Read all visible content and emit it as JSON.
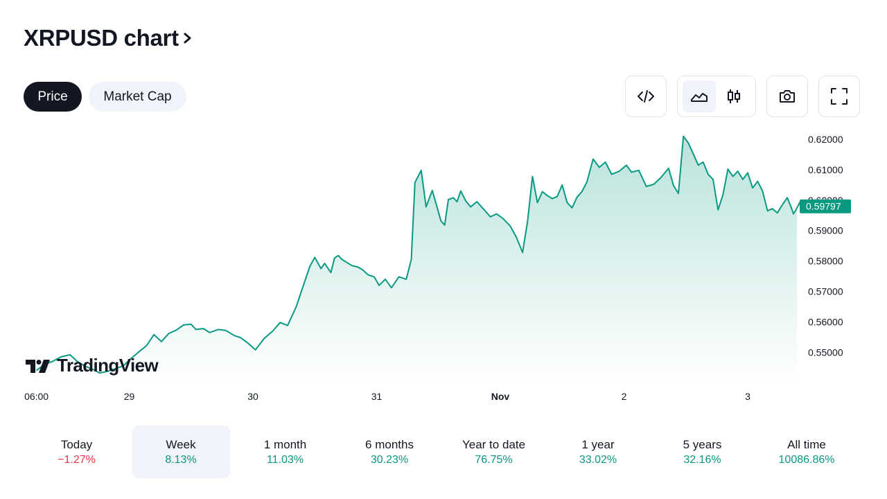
{
  "header": {
    "title": "XRPUSD chart"
  },
  "tabs": [
    {
      "label": "Price",
      "active": true
    },
    {
      "label": "Market Cap",
      "active": false
    }
  ],
  "toolbar": {
    "embed_icon": "code-embed-icon",
    "chart_type_icons": [
      "area-chart-icon",
      "candlestick-icon"
    ],
    "active_chart_type": "area",
    "snapshot_icon": "camera-icon",
    "fullscreen_icon": "fullscreen-icon"
  },
  "branding": {
    "wordmark": "TradingView"
  },
  "chart_data": {
    "type": "area",
    "title": "",
    "xlabel": "",
    "ylabel": "",
    "x_tick_labels": [
      "06:00",
      "29",
      "30",
      "31",
      "Nov",
      "2",
      "3"
    ],
    "y_tick_labels": [
      "0.62000",
      "0.61000",
      "0.60000",
      "0.59000",
      "0.58000",
      "0.57000",
      "0.56000",
      "0.55000"
    ],
    "y_ticks": [
      0.62,
      0.61,
      0.6,
      0.59,
      0.58,
      0.57,
      0.56,
      0.55
    ],
    "ylim": [
      0.5433,
      0.6222
    ],
    "current_price": 0.59797,
    "current_price_label": "0.59797",
    "line_color": "#089981",
    "x_ticks_days": [
      0.25,
      1,
      2,
      3,
      4,
      5,
      6
    ],
    "series": [
      {
        "x_days": [
          0.25,
          0.32,
          0.38,
          0.45,
          0.52,
          0.58,
          0.64,
          0.7,
          0.76,
          0.82,
          0.88,
          0.95,
          1.01,
          1.08,
          1.14,
          1.2,
          1.26,
          1.32,
          1.38,
          1.44,
          1.5,
          1.54,
          1.6,
          1.65,
          1.72,
          1.78,
          1.85,
          1.9,
          1.96,
          2.02,
          2.09,
          2.16,
          2.22,
          2.28,
          2.35,
          2.4,
          2.46,
          2.5,
          2.55,
          2.58,
          2.63,
          2.66,
          2.69,
          2.72,
          2.76,
          2.8,
          2.85,
          2.89,
          2.93,
          2.98,
          3.02,
          3.07,
          3.12,
          3.18,
          3.24,
          3.28,
          3.31,
          3.36,
          3.4,
          3.45,
          3.49,
          3.52,
          3.55,
          3.58,
          3.62,
          3.65,
          3.68,
          3.72,
          3.76,
          3.81,
          3.87,
          3.92,
          3.97,
          4.02,
          4.08,
          4.13,
          4.18,
          4.22,
          4.26,
          4.3,
          4.34,
          4.38,
          4.42,
          4.46,
          4.5,
          4.54,
          4.58,
          4.62,
          4.66,
          4.7,
          4.75,
          4.8,
          4.85,
          4.9,
          4.96,
          5.02,
          5.06,
          5.12,
          5.18,
          5.24,
          5.3,
          5.36,
          5.4,
          5.44,
          5.48,
          5.52,
          5.56,
          5.6,
          5.64,
          5.68,
          5.72,
          5.76,
          5.8,
          5.84,
          5.88,
          5.92,
          5.96,
          6.0,
          6.04,
          6.08,
          6.12,
          6.16,
          6.2,
          6.24,
          6.28,
          6.32,
          6.35,
          6.37,
          6.39,
          6.42,
          6.45,
          6.47
        ],
        "values": [
          0.544,
          0.5462,
          0.547,
          0.5485,
          0.5492,
          0.547,
          0.5455,
          0.5445,
          0.5432,
          0.5437,
          0.5445,
          0.5455,
          0.5478,
          0.5502,
          0.5522,
          0.5558,
          0.5535,
          0.5562,
          0.5573,
          0.559,
          0.5592,
          0.5575,
          0.5578,
          0.5565,
          0.5575,
          0.5572,
          0.5555,
          0.5548,
          0.553,
          0.5508,
          0.5545,
          0.557,
          0.5598,
          0.5588,
          0.565,
          0.571,
          0.5782,
          0.5812,
          0.5775,
          0.5792,
          0.5762,
          0.581,
          0.5818,
          0.5805,
          0.5795,
          0.5785,
          0.578,
          0.577,
          0.5755,
          0.5748,
          0.572,
          0.574,
          0.5712,
          0.5748,
          0.574,
          0.5805,
          0.6058,
          0.6098,
          0.5978,
          0.6032,
          0.5975,
          0.5932,
          0.5918,
          0.6002,
          0.6008,
          0.5995,
          0.603,
          0.5998,
          0.5978,
          0.5995,
          0.5968,
          0.5945,
          0.5955,
          0.594,
          0.5915,
          0.5878,
          0.5828,
          0.593,
          0.6078,
          0.5992,
          0.6028,
          0.6015,
          0.6005,
          0.6012,
          0.605,
          0.5992,
          0.5975,
          0.601,
          0.6028,
          0.606,
          0.6135,
          0.6108,
          0.6125,
          0.6085,
          0.6095,
          0.6115,
          0.6092,
          0.6098,
          0.6045,
          0.6052,
          0.6075,
          0.6105,
          0.6048,
          0.6022,
          0.621,
          0.6188,
          0.6152,
          0.6115,
          0.6125,
          0.6085,
          0.6068,
          0.5968,
          0.6018,
          0.6102,
          0.6078,
          0.6095,
          0.6068,
          0.609,
          0.604,
          0.6062,
          0.603,
          0.5965,
          0.5972,
          0.5958,
          0.5985,
          0.6008,
          0.5978,
          0.5955,
          0.5968,
          0.5992,
          0.5975,
          0.598
        ]
      }
    ]
  },
  "periods": [
    {
      "label": "Today",
      "value": "−1.27%",
      "trend": "neg",
      "active": false
    },
    {
      "label": "Week",
      "value": "8.13%",
      "trend": "pos",
      "active": true
    },
    {
      "label": "1 month",
      "value": "11.03%",
      "trend": "pos",
      "active": false
    },
    {
      "label": "6 months",
      "value": "30.23%",
      "trend": "pos",
      "active": false
    },
    {
      "label": "Year to date",
      "value": "76.75%",
      "trend": "pos",
      "active": false
    },
    {
      "label": "1 year",
      "value": "33.02%",
      "trend": "pos",
      "active": false
    },
    {
      "label": "5 years",
      "value": "32.16%",
      "trend": "pos",
      "active": false
    },
    {
      "label": "All time",
      "value": "10086.86%",
      "trend": "pos",
      "active": false
    }
  ]
}
